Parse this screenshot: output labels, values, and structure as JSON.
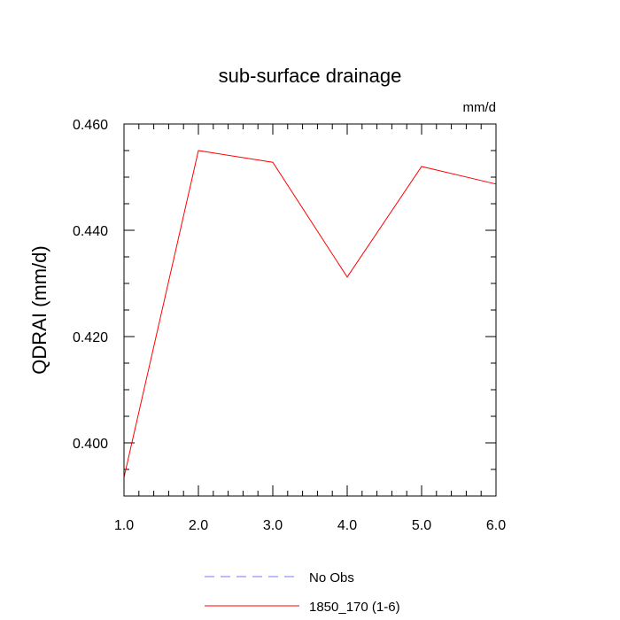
{
  "chart_data": {
    "type": "line",
    "title": "sub-surface drainage",
    "units_label": "mm/d",
    "xlabel": "",
    "ylabel": "QDRAI  (mm/d)",
    "xlim": [
      1.0,
      6.0
    ],
    "ylim": [
      0.39,
      0.46
    ],
    "xticks": [
      "1.0",
      "2.0",
      "3.0",
      "4.0",
      "5.0",
      "6.0"
    ],
    "yticks": [
      "0.400",
      "0.420",
      "0.440",
      "0.460"
    ],
    "grid": false,
    "legend_position": "bottom",
    "series": [
      {
        "name": "1850_170 (1-6)",
        "color": "#ff0000",
        "dash": "solid",
        "x": [
          1.0,
          2.0,
          3.0,
          4.0,
          5.0,
          6.0
        ],
        "y": [
          0.3935,
          0.455,
          0.4528,
          0.4312,
          0.452,
          0.4487
        ]
      }
    ],
    "legend": [
      {
        "label": "No Obs",
        "color": "#7777ff",
        "dash": "dashed"
      },
      {
        "label": "1850_170 (1-6)",
        "color": "#ff0000",
        "dash": "solid"
      }
    ]
  }
}
